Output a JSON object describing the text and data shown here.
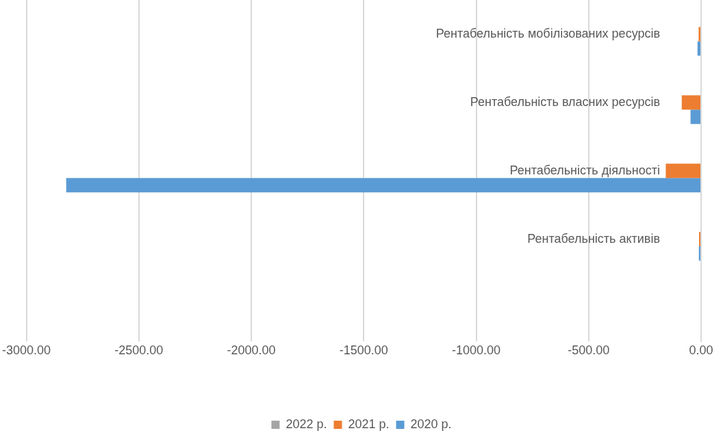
{
  "chart_data": {
    "type": "bar",
    "orientation": "horizontal",
    "categories": [
      "Рентабельність мобілізованих ресурсів",
      "Рентабельність власних ресурсів",
      "Рентабельність діяльності",
      "Рентабельність активів",
      null
    ],
    "series": [
      {
        "name": "2022 р.",
        "color": "#a5a5a5",
        "values": [
          null,
          null,
          null,
          null,
          null
        ]
      },
      {
        "name": "2021 р.",
        "color": "#ed7d31",
        "values": [
          -11,
          -86,
          -157,
          -9,
          null
        ]
      },
      {
        "name": "2020 р.",
        "color": "#5b9bd5",
        "values": [
          -16,
          -47,
          -2823,
          -10,
          null
        ]
      }
    ],
    "xlim": [
      -3000,
      0
    ],
    "xticks": [
      {
        "value": -3000,
        "label": "-3000.00"
      },
      {
        "value": -2500,
        "label": "-2500.00"
      },
      {
        "value": -2000,
        "label": "-2000.00"
      },
      {
        "value": -1500,
        "label": "-1500.00"
      },
      {
        "value": -1000,
        "label": "-1000.00"
      },
      {
        "value": -500,
        "label": "-500.00"
      },
      {
        "value": 0,
        "label": "0.00"
      }
    ],
    "grid": "x",
    "legend": "bottom"
  }
}
